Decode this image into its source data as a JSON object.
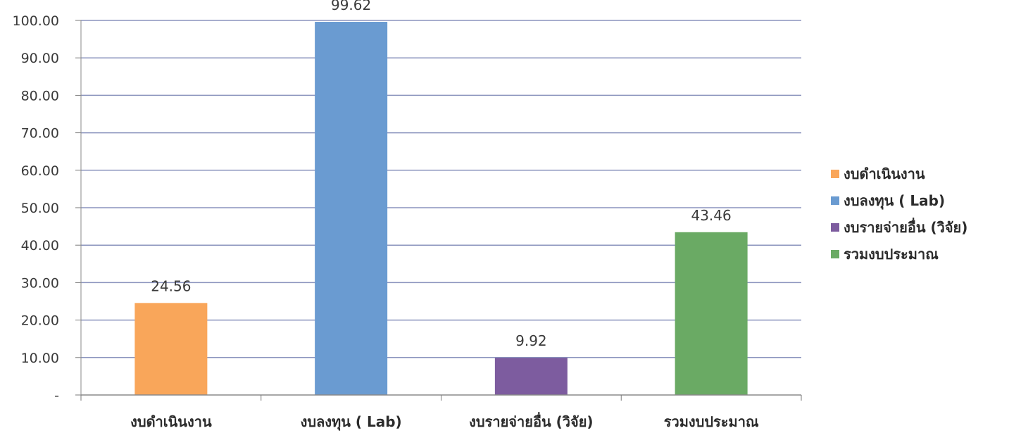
{
  "chart_data": {
    "type": "bar",
    "title": "",
    "xlabel": "",
    "ylabel": "",
    "categories": [
      "งบดำเนินงาน",
      "งบลงทุน ( Lab)",
      "งบรายจ่ายอื่น (วิจัย)",
      "รวมงบประมาณ"
    ],
    "values": [
      24.56,
      99.62,
      9.92,
      43.46
    ],
    "value_labels": [
      "24.56",
      "99.62",
      "9.92",
      "43.46"
    ],
    "colors": [
      "#f9a65a",
      "#6a9bd1",
      "#7d5c9f",
      "#6aaa64"
    ],
    "ylim": [
      0,
      100
    ],
    "yticks": [
      0,
      10,
      20,
      30,
      40,
      50,
      60,
      70,
      80,
      90,
      100
    ],
    "ytick_labels": [
      "-",
      "10.00",
      "20.00",
      "30.00",
      "40.00",
      "50.00",
      "60.00",
      "70.00",
      "80.00",
      "90.00",
      "100.00"
    ],
    "grid": true,
    "legend_position": "right",
    "legend": [
      "งบดำเนินงาน",
      "งบลงทุน ( Lab)",
      "งบรายจ่ายอื่น (วิจัย)",
      "รวมงบประมาณ"
    ]
  }
}
